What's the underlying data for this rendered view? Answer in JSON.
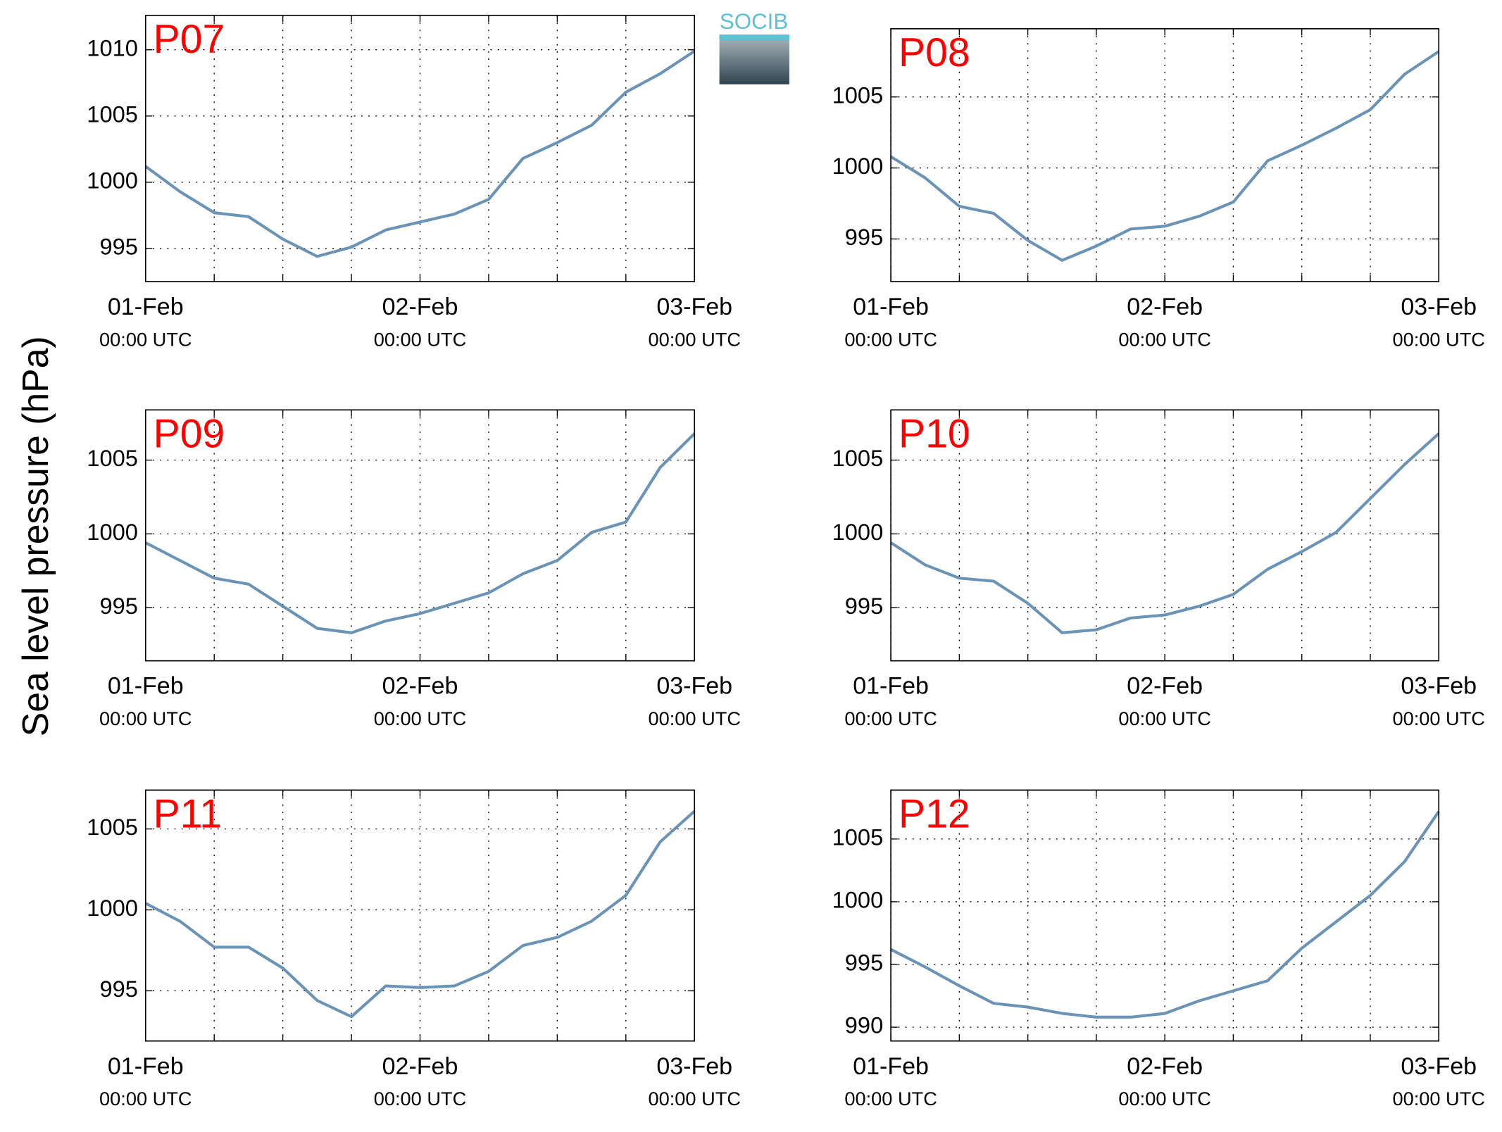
{
  "ylabel": "Sea level pressure (hPa)",
  "logo": "SOCIB",
  "chart_data": [
    {
      "type": "line",
      "title": "P07",
      "color": "#6a93b5",
      "grid": true,
      "x": [
        0,
        3,
        6,
        9,
        12,
        15,
        18,
        21,
        24,
        27,
        30,
        33,
        36,
        39,
        42,
        45,
        48
      ],
      "values": [
        1001.2,
        999.3,
        997.7,
        997.4,
        995.7,
        994.4,
        995.1,
        996.4,
        997.0,
        997.6,
        998.7,
        1001.8,
        1003.0,
        1004.3,
        1006.8,
        1008.2,
        1009.9
      ],
      "xlim": [
        0,
        48
      ],
      "xticks": [
        {
          "value": 0,
          "label": "01-Feb",
          "sublabel": "00:00 UTC"
        },
        {
          "value": 24,
          "label": "02-Feb",
          "sublabel": "00:00 UTC"
        },
        {
          "value": 48,
          "label": "03-Feb",
          "sublabel": "00:00 UTC"
        }
      ],
      "xminor": [
        6,
        12,
        18,
        30,
        36,
        42
      ],
      "ylim": [
        992.5,
        1012.6
      ],
      "yticks": [
        995,
        1000,
        1005,
        1010
      ]
    },
    {
      "type": "line",
      "title": "P08",
      "color": "#6a93b5",
      "grid": true,
      "x": [
        0,
        3,
        6,
        9,
        12,
        15,
        18,
        21,
        24,
        27,
        30,
        33,
        36,
        39,
        42,
        45,
        48
      ],
      "values": [
        1000.8,
        999.3,
        997.3,
        996.8,
        994.9,
        993.5,
        994.5,
        995.7,
        995.9,
        996.6,
        997.6,
        1000.5,
        1001.6,
        1002.8,
        1004.1,
        1006.6,
        1008.2
      ],
      "xlim": [
        0,
        48
      ],
      "xticks": [
        {
          "value": 0,
          "label": "01-Feb",
          "sublabel": "00:00 UTC"
        },
        {
          "value": 24,
          "label": "02-Feb",
          "sublabel": "00:00 UTC"
        },
        {
          "value": 48,
          "label": "03-Feb",
          "sublabel": "00:00 UTC"
        }
      ],
      "xminor": [
        6,
        12,
        18,
        30,
        36,
        42
      ],
      "ylim": [
        992.0,
        1009.8
      ],
      "yticks": [
        995,
        1000,
        1005
      ]
    },
    {
      "type": "line",
      "title": "P09",
      "color": "#6a93b5",
      "grid": true,
      "x": [
        0,
        3,
        6,
        9,
        12,
        15,
        18,
        21,
        24,
        27,
        30,
        33,
        36,
        39,
        42,
        45,
        48
      ],
      "values": [
        999.4,
        998.2,
        997.0,
        996.6,
        995.1,
        993.6,
        993.3,
        994.1,
        994.6,
        995.3,
        996.0,
        997.3,
        998.2,
        1000.1,
        1000.8,
        1004.5,
        1006.8
      ],
      "xlim": [
        0,
        48
      ],
      "xticks": [
        {
          "value": 0,
          "label": "01-Feb",
          "sublabel": "00:00 UTC"
        },
        {
          "value": 24,
          "label": "02-Feb",
          "sublabel": "00:00 UTC"
        },
        {
          "value": 48,
          "label": "03-Feb",
          "sublabel": "00:00 UTC"
        }
      ],
      "xminor": [
        6,
        12,
        18,
        30,
        36,
        42
      ],
      "ylim": [
        991.4,
        1008.4
      ],
      "yticks": [
        995,
        1000,
        1005
      ]
    },
    {
      "type": "line",
      "title": "P10",
      "color": "#6a93b5",
      "grid": true,
      "x": [
        0,
        3,
        6,
        9,
        12,
        15,
        18,
        21,
        24,
        27,
        30,
        33,
        36,
        39,
        42,
        45,
        48
      ],
      "values": [
        999.4,
        997.9,
        997.0,
        996.8,
        995.3,
        993.3,
        993.5,
        994.3,
        994.5,
        995.1,
        995.9,
        997.6,
        998.8,
        1000.1,
        1002.4,
        1004.7,
        1006.8
      ],
      "xlim": [
        0,
        48
      ],
      "xticks": [
        {
          "value": 0,
          "label": "01-Feb",
          "sublabel": "00:00 UTC"
        },
        {
          "value": 24,
          "label": "02-Feb",
          "sublabel": "00:00 UTC"
        },
        {
          "value": 48,
          "label": "03-Feb",
          "sublabel": "00:00 UTC"
        }
      ],
      "xminor": [
        6,
        12,
        18,
        30,
        36,
        42
      ],
      "ylim": [
        991.4,
        1008.4
      ],
      "yticks": [
        995,
        1000,
        1005
      ]
    },
    {
      "type": "line",
      "title": "P11",
      "color": "#6a93b5",
      "grid": true,
      "x": [
        0,
        3,
        6,
        9,
        12,
        15,
        18,
        21,
        24,
        27,
        30,
        33,
        36,
        39,
        42,
        45,
        48
      ],
      "values": [
        1000.4,
        999.3,
        997.7,
        997.7,
        996.4,
        994.4,
        993.4,
        995.3,
        995.2,
        995.3,
        996.2,
        997.8,
        998.3,
        999.3,
        1000.9,
        1004.2,
        1006.1
      ],
      "xlim": [
        0,
        48
      ],
      "xticks": [
        {
          "value": 0,
          "label": "01-Feb",
          "sublabel": "00:00 UTC"
        },
        {
          "value": 24,
          "label": "02-Feb",
          "sublabel": "00:00 UTC"
        },
        {
          "value": 48,
          "label": "03-Feb",
          "sublabel": "00:00 UTC"
        }
      ],
      "xminor": [
        6,
        12,
        18,
        30,
        36,
        42
      ],
      "ylim": [
        991.9,
        1007.4
      ],
      "yticks": [
        995,
        1000,
        1005
      ]
    },
    {
      "type": "line",
      "title": "P12",
      "color": "#6a93b5",
      "grid": true,
      "x": [
        0,
        3,
        6,
        9,
        12,
        15,
        18,
        21,
        24,
        27,
        30,
        33,
        36,
        39,
        42,
        45,
        48
      ],
      "values": [
        996.2,
        994.8,
        993.3,
        991.9,
        991.6,
        991.1,
        990.8,
        990.8,
        991.1,
        992.1,
        992.9,
        993.7,
        996.3,
        998.4,
        1000.5,
        1003.2,
        1007.2
      ],
      "xlim": [
        0,
        48
      ],
      "xticks": [
        {
          "value": 0,
          "label": "01-Feb",
          "sublabel": "00:00 UTC"
        },
        {
          "value": 24,
          "label": "02-Feb",
          "sublabel": "00:00 UTC"
        },
        {
          "value": 48,
          "label": "03-Feb",
          "sublabel": "00:00 UTC"
        }
      ],
      "xminor": [
        6,
        12,
        18,
        30,
        36,
        42
      ],
      "ylim": [
        988.9,
        1008.9
      ],
      "yticks": [
        990,
        995,
        1000,
        1005
      ]
    }
  ]
}
